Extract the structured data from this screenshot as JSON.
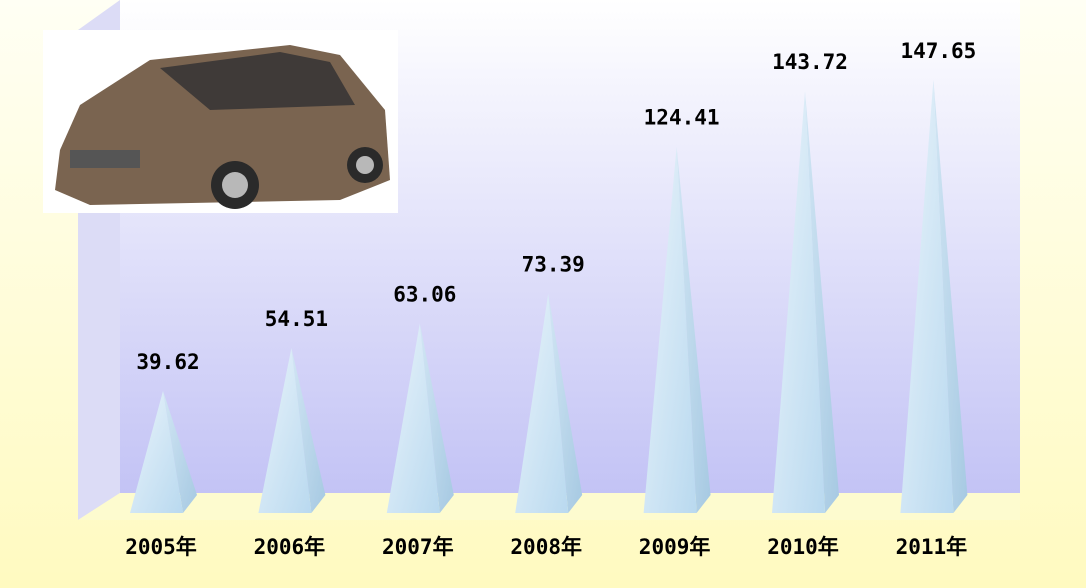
{
  "chart_data": {
    "type": "pyramid",
    "categories": [
      "2005年",
      "2006年",
      "2007年",
      "2008年",
      "2009年",
      "2010年",
      "2011年"
    ],
    "values": [
      39.62,
      54.51,
      63.06,
      73.39,
      124.41,
      143.72,
      147.65
    ]
  }
}
